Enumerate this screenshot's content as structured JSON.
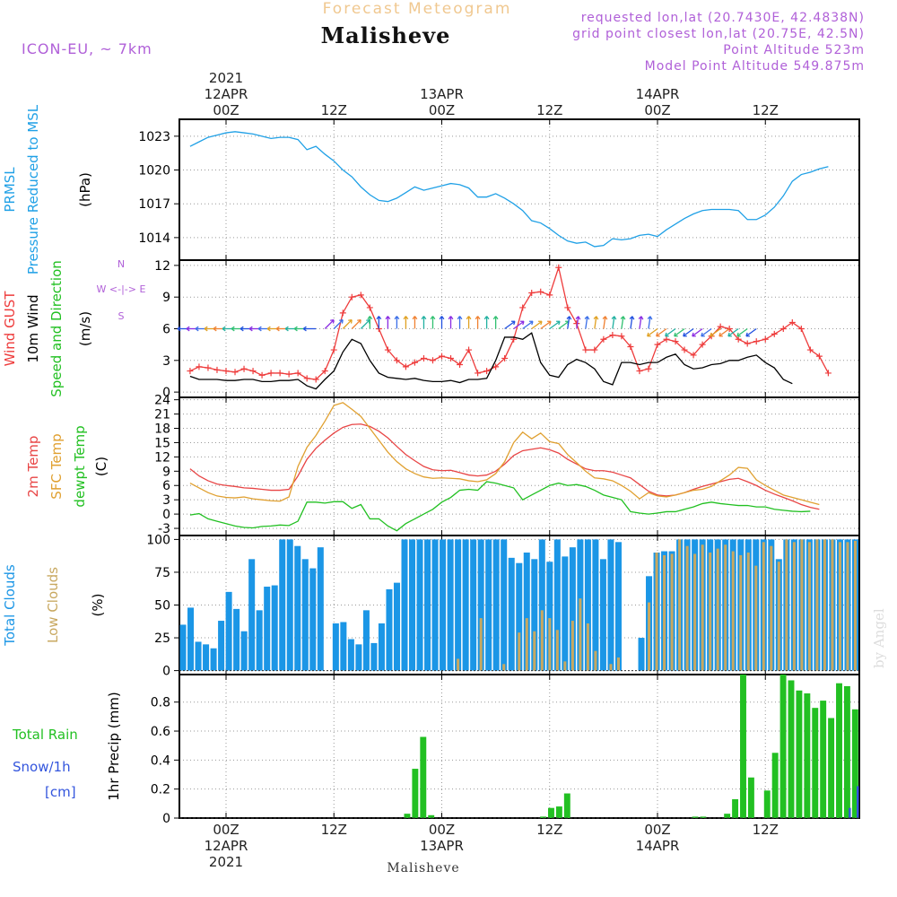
{
  "header": {
    "supertitle": "Forecast Meteogram",
    "title": "Malisheve",
    "model": "ICON-EU, ~ 7km",
    "requested": "requested lon,lat (20.7430E, 42.4838N)",
    "gridpoint": "grid point closest lon,lat (20.75E, 42.5N)",
    "point_alt": "Point Altitude 523m",
    "model_alt": "Model Point Altitude 549.875m",
    "footer": "Malisheve",
    "watermark": "by Angel"
  },
  "colors": {
    "pressure": "#1fa0e6",
    "gust": "#ee3b3b",
    "wind": "#000000",
    "temp2m": "#e84545",
    "sfctemp": "#e0a030",
    "dewpt": "#22c022",
    "total_clouds": "#1b96e6",
    "low_clouds": "#c8a860",
    "rain": "#22c022",
    "snow": "#3355dd",
    "meta": "#b060d8",
    "supertitle": "#f0c890"
  },
  "time_axis": {
    "top_labels": [
      {
        "slot": 0,
        "lines": [
          "2021",
          "12APR",
          "00Z"
        ]
      },
      {
        "slot": 12,
        "lines": [
          "12Z"
        ]
      },
      {
        "slot": 24,
        "lines": [
          "13APR",
          "00Z"
        ]
      },
      {
        "slot": 36,
        "lines": [
          "12Z"
        ]
      },
      {
        "slot": 48,
        "lines": [
          "14APR",
          "00Z"
        ]
      },
      {
        "slot": 60,
        "lines": [
          "12Z"
        ]
      }
    ],
    "bottom_labels": [
      {
        "slot": 0,
        "lines": [
          "00Z",
          "12APR",
          "2021"
        ]
      },
      {
        "slot": 12,
        "lines": [
          "12Z"
        ]
      },
      {
        "slot": 24,
        "lines": [
          "00Z",
          "13APR"
        ]
      },
      {
        "slot": 36,
        "lines": [
          "12Z"
        ]
      },
      {
        "slot": 48,
        "lines": [
          "00Z",
          "14APR"
        ]
      },
      {
        "slot": 60,
        "lines": [
          "12Z"
        ]
      }
    ]
  },
  "panels": [
    {
      "id": "pressure",
      "left_labels": [
        {
          "text": "PRMSL",
          "color": "#1fa0e6"
        },
        {
          "text": "Pressure Reduced to MSL",
          "color": "#1fa0e6"
        },
        {
          "text": "(hPa)",
          "color": "#000000"
        }
      ]
    },
    {
      "id": "wind",
      "left_labels": [
        {
          "text": "Wind GUST",
          "color": "#ee3b3b"
        },
        {
          "text": "10m Wind",
          "color": "#000000"
        },
        {
          "text": "Speed and Direction",
          "color": "#22c022"
        },
        {
          "text": "(m/s)",
          "color": "#000000"
        }
      ],
      "compass": [
        "N",
        "W <-|-> E",
        "S"
      ]
    },
    {
      "id": "temp",
      "left_labels": [
        {
          "text": "2m Temp",
          "color": "#e84545"
        },
        {
          "text": "SFC Temp",
          "color": "#e0a030"
        },
        {
          "text": "dewpt Temp",
          "color": "#22c022"
        },
        {
          "text": "(C)",
          "color": "#000000"
        }
      ]
    },
    {
      "id": "clouds",
      "left_labels": [
        {
          "text": "Total Clouds",
          "color": "#1b96e6"
        },
        {
          "text": "Low Clouds",
          "color": "#c8a860"
        },
        {
          "text": "(%)",
          "color": "#000000"
        }
      ]
    },
    {
      "id": "precip",
      "left_labels": [
        {
          "text": "Total  Rain",
          "color": "#22c022"
        },
        {
          "text": "Snow/1h",
          "color": "#3355dd"
        },
        {
          "text": "[cm]",
          "color": "#3355dd"
        },
        {
          "text": "1hr Precip (mm)",
          "color": "#000000"
        }
      ]
    }
  ],
  "chart_data": [
    {
      "type": "line",
      "title": "PRMSL",
      "ylabel": "(hPa)",
      "x_unit": "hour from 12APR 00Z",
      "x_start": -4,
      "ylim": [
        1012,
        1024.5
      ],
      "yticks": [
        1014,
        1017,
        1020,
        1023
      ],
      "series": [
        {
          "name": "PRMSL",
          "values": [
            1022.1,
            1022.5,
            1022.9,
            1023.1,
            1023.3,
            1023.4,
            1023.3,
            1023.2,
            1023.0,
            1022.8,
            1022.9,
            1022.9,
            1022.7,
            1021.8,
            1022.1,
            1021.4,
            1020.8,
            1020.0,
            1019.4,
            1018.5,
            1017.8,
            1017.3,
            1017.2,
            1017.5,
            1018.0,
            1018.5,
            1018.2,
            1018.4,
            1018.6,
            1018.8,
            1018.7,
            1018.4,
            1017.6,
            1017.6,
            1017.9,
            1017.5,
            1017.0,
            1016.4,
            1015.5,
            1015.3,
            1014.8,
            1014.2,
            1013.7,
            1013.5,
            1013.6,
            1013.2,
            1013.3,
            1013.9,
            1013.8,
            1013.9,
            1014.2,
            1014.3,
            1014.1,
            1014.7,
            1015.2,
            1015.7,
            1016.1,
            1016.4,
            1016.5,
            1016.5,
            1016.5,
            1016.4,
            1015.6,
            1015.6,
            1016.0,
            1016.7,
            1017.7,
            1019.0,
            1019.6,
            1019.8,
            1020.1,
            1020.3
          ]
        }
      ]
    },
    {
      "type": "line",
      "title": "Wind",
      "ylabel": "(m/s)",
      "ylim": [
        -0.5,
        12.5
      ],
      "yticks": [
        0,
        3,
        6,
        9,
        12
      ],
      "series": [
        {
          "name": "Wind GUST",
          "values": [
            2.0,
            2.4,
            2.3,
            2.1,
            2.0,
            1.9,
            2.2,
            2.0,
            1.6,
            1.8,
            1.8,
            1.7,
            1.8,
            1.3,
            1.2,
            2.0,
            4.0,
            7.5,
            9.0,
            9.2,
            8.0,
            6.0,
            4.0,
            3.0,
            2.4,
            2.8,
            3.2,
            3.0,
            3.4,
            3.2,
            2.6,
            4.0,
            1.8,
            2.0,
            2.4,
            3.2,
            5.0,
            8.0,
            9.4,
            9.5,
            9.2,
            11.8,
            8.0,
            6.5,
            4.0,
            4.0,
            5.0,
            5.4,
            5.3,
            4.3,
            2.0,
            2.2,
            4.5,
            5.0,
            4.8,
            4.0,
            3.5,
            4.5,
            5.3,
            6.2,
            6.0,
            5.0,
            4.6,
            4.8,
            5.0,
            5.5,
            6.0,
            6.6,
            6.0,
            4.0,
            3.4,
            1.8
          ]
        },
        {
          "name": "10m Wind",
          "values": [
            1.5,
            1.2,
            1.2,
            1.2,
            1.1,
            1.1,
            1.2,
            1.2,
            1.0,
            1.0,
            1.1,
            1.1,
            1.2,
            0.6,
            0.3,
            1.2,
            2.0,
            3.8,
            5.0,
            4.6,
            3.0,
            1.8,
            1.4,
            1.3,
            1.2,
            1.3,
            1.1,
            1.0,
            1.0,
            1.1,
            0.9,
            1.2,
            1.2,
            1.3,
            3.0,
            5.2,
            5.2,
            5.0,
            5.6,
            2.8,
            1.6,
            1.4,
            2.6,
            3.1,
            2.8,
            2.2,
            1.0,
            0.7,
            2.8,
            2.8,
            2.6,
            2.8,
            2.8,
            3.3,
            3.6,
            2.6,
            2.2,
            2.3,
            2.6,
            2.7,
            3.0,
            3.0,
            3.3,
            3.5,
            2.8,
            2.3,
            1.2,
            0.8
          ]
        }
      ]
    },
    {
      "type": "line",
      "title": "Temperature",
      "ylabel": "(C)",
      "ylim": [
        -4.5,
        24.5
      ],
      "yticks": [
        -3,
        0,
        3,
        6,
        9,
        12,
        15,
        18,
        21,
        24
      ],
      "series": [
        {
          "name": "2m Temp",
          "values": [
            9.5,
            8.0,
            7.0,
            6.3,
            6.0,
            5.8,
            5.5,
            5.4,
            5.2,
            5.0,
            5.0,
            5.2,
            8.0,
            11.5,
            13.8,
            15.5,
            17.0,
            18.2,
            18.8,
            18.9,
            18.4,
            17.4,
            16.0,
            14.2,
            12.5,
            11.2,
            10.0,
            9.3,
            9.1,
            9.2,
            8.7,
            8.2,
            8.0,
            8.2,
            9.0,
            10.5,
            12.3,
            13.3,
            13.6,
            13.9,
            13.5,
            12.8,
            11.5,
            10.5,
            9.5,
            9.1,
            9.1,
            8.8,
            8.2,
            7.6,
            6.2,
            4.8,
            4.0,
            3.8,
            4.0,
            4.5,
            5.2,
            5.8,
            6.3,
            6.8,
            7.3,
            7.5,
            6.8,
            6.0,
            5.0,
            4.2,
            3.5,
            2.8,
            2.0,
            1.4,
            1.0
          ]
        },
        {
          "name": "SFC Temp",
          "values": [
            6.5,
            5.5,
            4.5,
            3.8,
            3.5,
            3.4,
            3.6,
            3.2,
            3.0,
            2.8,
            2.7,
            3.6,
            10.0,
            14.0,
            16.5,
            19.5,
            22.8,
            23.4,
            22.0,
            20.5,
            18.0,
            15.5,
            13.0,
            11.0,
            9.5,
            8.5,
            7.8,
            7.5,
            7.6,
            7.5,
            7.4,
            7.0,
            6.8,
            7.2,
            8.5,
            11.0,
            15.0,
            17.2,
            15.8,
            17.0,
            15.2,
            14.8,
            12.5,
            10.8,
            9.0,
            7.6,
            7.4,
            7.0,
            6.0,
            4.8,
            3.2,
            4.5,
            3.8,
            3.6,
            4.0,
            4.5,
            5.0,
            5.2,
            5.8,
            7.0,
            8.2,
            9.8,
            9.6,
            7.2,
            6.0,
            5.0,
            4.0,
            3.5,
            3.0,
            2.5,
            2.0
          ]
        },
        {
          "name": "dewpt Temp",
          "values": [
            -0.2,
            0.1,
            -1.0,
            -1.5,
            -2.0,
            -2.5,
            -2.8,
            -2.9,
            -2.6,
            -2.5,
            -2.3,
            -2.4,
            -1.5,
            2.5,
            2.5,
            2.3,
            2.6,
            2.6,
            1.2,
            2.0,
            -1.0,
            -1.0,
            -2.5,
            -3.5,
            -2.0,
            -1.0,
            0.0,
            1.0,
            2.5,
            3.5,
            5.0,
            5.2,
            5.0,
            6.8,
            6.5,
            6.0,
            5.5,
            3.0,
            4.0,
            5.0,
            6.0,
            6.5,
            6.0,
            6.2,
            5.8,
            5.0,
            4.0,
            3.5,
            3.0,
            0.5,
            0.2,
            0.0,
            0.2,
            0.5,
            0.5,
            1.0,
            1.5,
            2.2,
            2.5,
            2.2,
            2.0,
            1.8,
            1.8,
            1.5,
            1.5,
            1.0,
            0.8,
            0.6,
            0.5,
            0.6
          ]
        }
      ]
    },
    {
      "type": "bar",
      "title": "Clouds",
      "ylabel": "(%)",
      "ylim": [
        -3,
        103
      ],
      "yticks": [
        0,
        25,
        50,
        75,
        100
      ],
      "series": [
        {
          "name": "Total Clouds",
          "values": [
            35,
            48,
            22,
            20,
            17,
            38,
            60,
            47,
            30,
            85,
            46,
            64,
            65,
            100,
            100,
            95,
            85,
            78,
            94,
            0,
            36,
            37,
            24,
            20,
            46,
            21,
            36,
            62,
            67,
            100,
            100,
            100,
            100,
            100,
            100,
            100,
            100,
            100,
            100,
            100,
            100,
            100,
            100,
            86,
            82,
            90,
            85,
            100,
            83,
            100,
            87,
            94,
            100,
            100,
            100,
            85,
            100,
            98,
            0,
            0,
            25,
            72,
            90,
            91,
            91,
            100,
            100,
            100,
            100,
            100,
            100,
            100,
            100,
            100,
            100,
            100,
            100,
            100,
            85,
            100,
            100,
            100,
            100,
            100,
            100,
            100,
            100,
            100,
            100
          ]
        },
        {
          "name": "Low Clouds",
          "values": [
            0,
            0,
            0,
            0,
            0,
            0,
            0,
            0,
            0,
            0,
            0,
            0,
            0,
            0,
            0,
            0,
            0,
            0,
            0,
            0,
            0,
            0,
            0,
            0,
            0,
            0,
            0,
            0,
            0,
            0,
            0,
            0,
            0,
            0,
            0,
            0,
            9,
            0,
            0,
            40,
            0,
            0,
            5,
            0,
            29,
            40,
            30,
            46,
            40,
            31,
            7,
            38,
            55,
            36,
            15,
            0,
            5,
            10,
            0,
            0,
            0,
            52,
            90,
            88,
            89,
            100,
            95,
            89,
            96,
            90,
            93,
            96,
            91,
            88,
            90,
            80,
            98,
            95,
            83,
            100,
            98,
            100,
            98,
            100,
            100,
            100,
            98,
            98,
            99
          ]
        }
      ]
    },
    {
      "type": "bar",
      "title": "1hr Precip",
      "ylabel": "1hr Precip (mm)",
      "ylim": [
        0,
        0.99
      ],
      "yticks": [
        0,
        0.2,
        0.4,
        0.6,
        0.8
      ],
      "series": [
        {
          "name": "Total Rain",
          "values": [
            0,
            0,
            0,
            0,
            0,
            0,
            0,
            0,
            0,
            0,
            0,
            0,
            0,
            0,
            0,
            0,
            0,
            0,
            0,
            0,
            0,
            0,
            0,
            0,
            0,
            0,
            0,
            0,
            0.03,
            0.34,
            0.56,
            0.02,
            0,
            0,
            0,
            0,
            0,
            0,
            0,
            0,
            0,
            0,
            0,
            0,
            0,
            0.01,
            0.07,
            0.08,
            0.17,
            0,
            0,
            0,
            0,
            0,
            0,
            0,
            0,
            0,
            0,
            0,
            0,
            0,
            0,
            0,
            0.01,
            0.01,
            0,
            0,
            0.03,
            0.13,
            0.99,
            0.28,
            0,
            0.19,
            0.45,
            0.99,
            0.95,
            0.88,
            0.86,
            0.76,
            0.81,
            0.69,
            0.93,
            0.91,
            0.75
          ]
        },
        {
          "name": "Snow/1h",
          "values": [
            0,
            0,
            0,
            0,
            0,
            0,
            0,
            0,
            0,
            0,
            0,
            0,
            0,
            0,
            0,
            0,
            0,
            0,
            0,
            0,
            0,
            0,
            0,
            0,
            0,
            0,
            0,
            0,
            0,
            0,
            0,
            0,
            0,
            0,
            0,
            0,
            0,
            0,
            0,
            0,
            0,
            0,
            0,
            0,
            0,
            0,
            0,
            0,
            0,
            0,
            0,
            0,
            0,
            0,
            0,
            0,
            0,
            0,
            0,
            0,
            0,
            0,
            0,
            0,
            0,
            0,
            0,
            0,
            0,
            0,
            0,
            0,
            0,
            0,
            0,
            0,
            0,
            0,
            0,
            0,
            0,
            0,
            0,
            0.07,
            0.22
          ]
        }
      ]
    }
  ]
}
